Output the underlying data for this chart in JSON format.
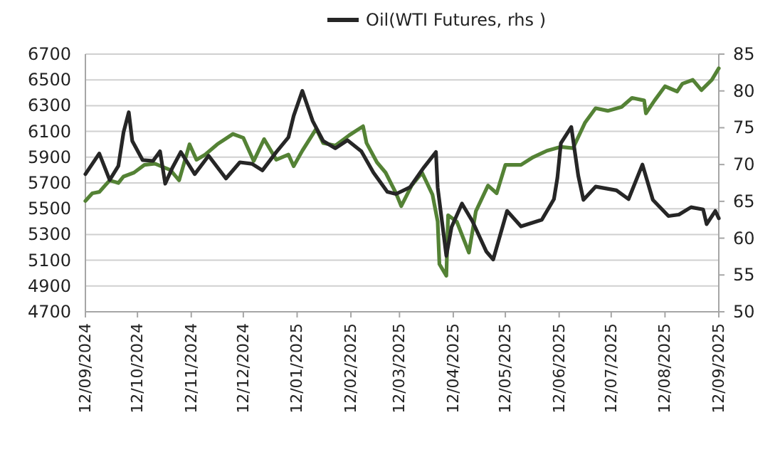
{
  "chart_data": {
    "type": "line",
    "xlim": [
      "2024-09-12",
      "2025-09-12"
    ],
    "xticks": [
      {
        "value": "2024-09-12",
        "label": "12/09/2024"
      },
      {
        "value": "2024-10-12",
        "label": "12/10/2024"
      },
      {
        "value": "2024-11-12",
        "label": "12/11/2024"
      },
      {
        "value": "2024-12-12",
        "label": "12/12/2024"
      },
      {
        "value": "2025-01-12",
        "label": "12/01/2025"
      },
      {
        "value": "2025-02-12",
        "label": "12/02/2025"
      },
      {
        "value": "2025-03-12",
        "label": "12/03/2025"
      },
      {
        "value": "2025-04-12",
        "label": "12/04/2025"
      },
      {
        "value": "2025-05-12",
        "label": "12/05/2025"
      },
      {
        "value": "2025-06-12",
        "label": "12/06/2025"
      },
      {
        "value": "2025-07-12",
        "label": "12/07/2025"
      },
      {
        "value": "2025-08-12",
        "label": "12/08/2025"
      },
      {
        "value": "2025-09-12",
        "label": "12/09/2025"
      }
    ],
    "ylim": [
      4700,
      6700
    ],
    "yticks": [
      4700,
      4900,
      5100,
      5300,
      5500,
      5700,
      5900,
      6100,
      6300,
      6500,
      6700
    ],
    "y2lim": [
      50,
      85
    ],
    "y2ticks": [
      50,
      55,
      60,
      65,
      70,
      75,
      80,
      85
    ],
    "grid": "y",
    "legend": "top",
    "line_style": "solid",
    "marker": "none",
    "series": [
      {
        "color": "#548235",
        "axis": "y",
        "x": [
          "2024-09-12",
          "2024-09-16",
          "2024-09-20",
          "2024-09-26",
          "2024-10-01",
          "2024-10-04",
          "2024-10-10",
          "2024-10-16",
          "2024-10-22",
          "2024-10-31",
          "2024-11-05",
          "2024-11-11",
          "2024-11-15",
          "2024-11-20",
          "2024-11-27",
          "2024-12-06",
          "2024-12-12",
          "2024-12-18",
          "2024-12-24",
          "2024-12-31",
          "2025-01-07",
          "2025-01-10",
          "2025-01-15",
          "2025-01-23",
          "2025-01-27",
          "2025-02-03",
          "2025-02-11",
          "2025-02-19",
          "2025-02-21",
          "2025-02-27",
          "2025-03-04",
          "2025-03-10",
          "2025-03-13",
          "2025-03-19",
          "2025-03-25",
          "2025-03-31",
          "2025-04-03",
          "2025-04-04",
          "2025-04-08",
          "2025-04-09",
          "2025-04-14",
          "2025-04-21",
          "2025-04-25",
          "2025-05-02",
          "2025-05-07",
          "2025-05-12",
          "2025-05-21",
          "2025-05-28",
          "2025-06-05",
          "2025-06-13",
          "2025-06-20",
          "2025-06-27",
          "2025-07-03",
          "2025-07-10",
          "2025-07-18",
          "2025-07-24",
          "2025-07-31",
          "2025-08-01",
          "2025-08-06",
          "2025-08-12",
          "2025-08-19",
          "2025-08-22",
          "2025-08-28",
          "2025-09-02",
          "2025-09-08",
          "2025-09-12"
        ],
        "values": [
          5560,
          5620,
          5630,
          5720,
          5700,
          5750,
          5780,
          5840,
          5850,
          5800,
          5720,
          6000,
          5880,
          5920,
          6000,
          6080,
          6050,
          5870,
          6040,
          5880,
          5920,
          5830,
          5950,
          6120,
          6010,
          5990,
          6070,
          6140,
          6010,
          5860,
          5780,
          5620,
          5520,
          5680,
          5780,
          5610,
          5400,
          5070,
          4980,
          5450,
          5400,
          5160,
          5480,
          5680,
          5620,
          5840,
          5840,
          5900,
          5950,
          5980,
          5970,
          6170,
          6280,
          6260,
          6290,
          6360,
          6340,
          6240,
          6340,
          6450,
          6410,
          6470,
          6500,
          6420,
          6500,
          6590
        ]
      },
      {
        "name": "Oil(WTI Futures, rhs )",
        "color": "#262626",
        "axis": "y2",
        "x": [
          "2024-09-12",
          "2024-09-16",
          "2024-09-20",
          "2024-09-26",
          "2024-10-01",
          "2024-10-04",
          "2024-10-07",
          "2024-10-09",
          "2024-10-15",
          "2024-10-21",
          "2024-10-25",
          "2024-10-28",
          "2024-11-01",
          "2024-11-06",
          "2024-11-14",
          "2024-11-22",
          "2024-12-02",
          "2024-12-10",
          "2024-12-17",
          "2024-12-23",
          "2024-12-31",
          "2025-01-07",
          "2025-01-10",
          "2025-01-15",
          "2025-01-21",
          "2025-01-27",
          "2025-02-03",
          "2025-02-10",
          "2025-02-18",
          "2025-02-25",
          "2025-03-05",
          "2025-03-10",
          "2025-03-18",
          "2025-03-26",
          "2025-04-02",
          "2025-04-03",
          "2025-04-08",
          "2025-04-11",
          "2025-04-17",
          "2025-04-23",
          "2025-05-01",
          "2025-05-05",
          "2025-05-13",
          "2025-05-21",
          "2025-06-02",
          "2025-06-09",
          "2025-06-11",
          "2025-06-13",
          "2025-06-19",
          "2025-06-23",
          "2025-06-26",
          "2025-07-03",
          "2025-07-15",
          "2025-07-22",
          "2025-07-30",
          "2025-08-05",
          "2025-08-14",
          "2025-08-20",
          "2025-08-27",
          "2025-09-03",
          "2025-09-05",
          "2025-09-10",
          "2025-09-12"
        ],
        "values": [
          68.7,
          70.1,
          71.5,
          67.9,
          69.8,
          74.4,
          77.1,
          73.2,
          70.6,
          70.5,
          71.8,
          67.4,
          69.5,
          71.7,
          68.7,
          71.2,
          68.1,
          70.3,
          70.1,
          69.2,
          71.7,
          73.7,
          76.6,
          80.0,
          75.9,
          73.2,
          72.2,
          73.3,
          71.8,
          68.9,
          66.3,
          66.0,
          66.9,
          69.6,
          71.7,
          66.9,
          57.6,
          61.5,
          64.7,
          62.3,
          58.2,
          57.1,
          63.7,
          61.6,
          62.5,
          65.3,
          68.2,
          72.9,
          75.1,
          68.5,
          65.2,
          67.0,
          66.5,
          65.3,
          70.0,
          65.2,
          63.0,
          63.2,
          64.2,
          63.9,
          61.9,
          63.7,
          62.7
        ]
      }
    ]
  }
}
